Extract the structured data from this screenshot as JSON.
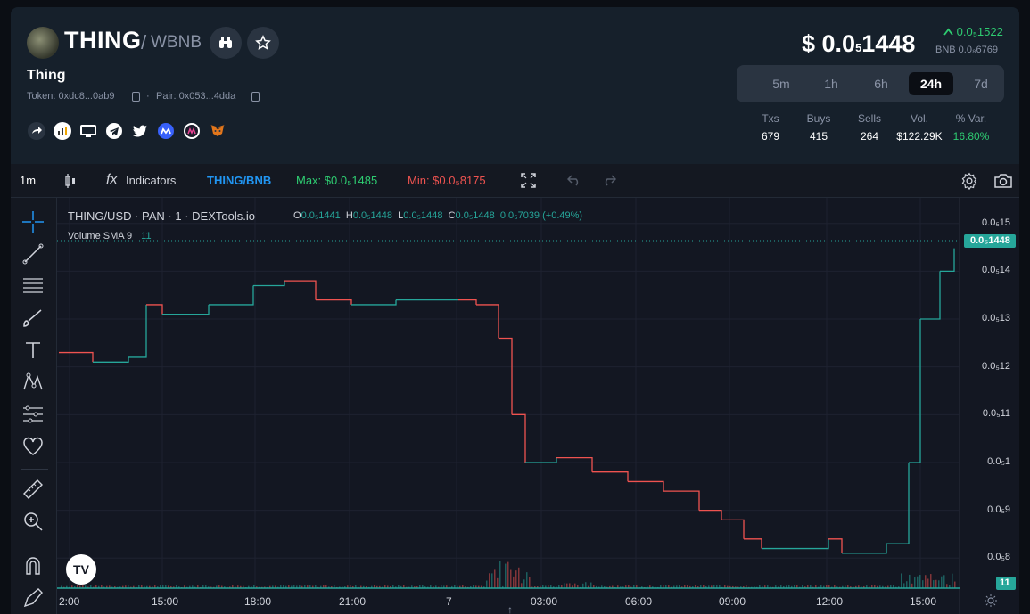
{
  "token": {
    "symbol": "THING",
    "quote": "WBNB",
    "name": "Thing",
    "token_addr": "Token: 0xdc8...0ab9",
    "pair_addr": "Pair: 0x053...4dda"
  },
  "price": {
    "prefix": "$ 0.0",
    "sub": "5",
    "rest": "1448",
    "change": "0.0₅1522",
    "bnb": "BNB 0.0₈6769"
  },
  "timeframes": [
    "5m",
    "1h",
    "6h",
    "24h",
    "7d"
  ],
  "active_timeframe": "24h",
  "stats": [
    {
      "label": "Txs",
      "value": "679"
    },
    {
      "label": "Buys",
      "value": "415"
    },
    {
      "label": "Sells",
      "value": "264"
    },
    {
      "label": "Vol.",
      "value": "$122.29K"
    },
    {
      "label": "% Var.",
      "value": "16.80%"
    }
  ],
  "toolbar": {
    "interval": "1m",
    "indicators": "Indicators",
    "pair": "THING/BNB",
    "max": "Max: $0.0₅1485",
    "min": "Min: $0.0₅8175"
  },
  "chart": {
    "symbol_line": "THING/USD · PAN · 1 · DEXTools.io",
    "o": "0.0₅1441",
    "h": "0.0₅1448",
    "l": "0.0₅1448",
    "c": "0.0₅1448",
    "change": "0.0₅7039 (+0.49%)",
    "volume_label": "Volume SMA 9",
    "volume_value": "11",
    "last_price_tag": "0.0₅1448",
    "volume_tag": "11",
    "colors": {
      "up": "#26a69a",
      "down": "#ef5350",
      "bg": "#131722"
    }
  },
  "chart_data": {
    "type": "line",
    "title": "THING/USD · PAN · 1 · DEXTools.io",
    "x_ticks": [
      "2:00",
      "15:00",
      "18:00",
      "21:00",
      "7",
      "03:00",
      "06:00",
      "09:00",
      "12:00",
      "15:00"
    ],
    "y_ticks": [
      "0.0₅15",
      "0.0₅14",
      "0.0₅13",
      "0.0₅12",
      "0.0₅11",
      "0.0₅1",
      "0.0₅9",
      "0.0₅8"
    ],
    "series": [
      {
        "x": [
          "13:00",
          "14:00",
          "15:00",
          "15:30",
          "16:00",
          "16:30",
          "17:00",
          "18:00",
          "19:00",
          "19:30",
          "20:00",
          "21:00",
          "22:00",
          "23:00",
          "00:00",
          "01:00",
          "01:30",
          "02:00",
          "02:30",
          "03:00",
          "04:00",
          "05:00",
          "06:00",
          "07:00",
          "08:00",
          "09:00",
          "10:00",
          "11:00",
          "12:00",
          "13:00",
          "14:00",
          "14:30",
          "14:45",
          "15:00",
          "15:20",
          "15:40"
        ],
        "y": [
          12.3,
          12.1,
          12.2,
          13.3,
          13.1,
          13.1,
          13.3,
          13.7,
          13.8,
          13.4,
          13.3,
          13.4,
          13.4,
          13.4,
          13.3,
          12.6,
          11.0,
          10.0,
          10.1,
          9.8,
          9.6,
          9.4,
          9.0,
          8.8,
          8.4,
          8.2,
          8.2,
          8.2,
          8.4,
          8.1,
          8.3,
          8.3,
          10.0,
          13.0,
          14.0,
          14.48
        ]
      }
    ],
    "y_unit": "×10⁻⁶ USD (shown with subscript-zero notation)",
    "ylim": [
      7.8,
      15.2
    ],
    "grid": true
  }
}
